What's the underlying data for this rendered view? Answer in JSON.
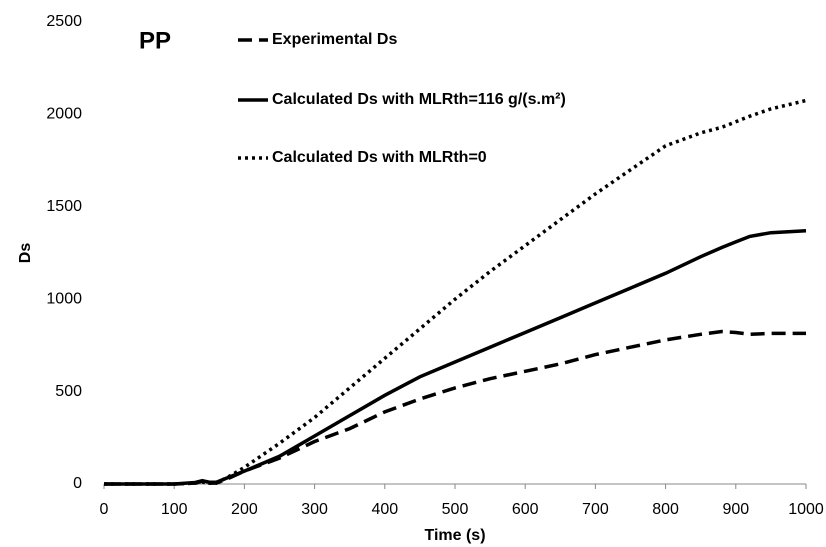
{
  "chart_data": {
    "type": "line",
    "title": "PP",
    "x_label": "Time (s)",
    "y_label": "Ds",
    "x": [
      0,
      50,
      100,
      130,
      140,
      150,
      160,
      180,
      200,
      250,
      300,
      350,
      400,
      450,
      500,
      550,
      600,
      650,
      700,
      750,
      800,
      850,
      880,
      900,
      920,
      950,
      1000
    ],
    "series": [
      {
        "name": "Experimental Ds",
        "color": "#000000",
        "style": "dashed",
        "values": [
          0,
          0,
          0,
          5,
          15,
          5,
          5,
          35,
          70,
          140,
          230,
          300,
          390,
          460,
          520,
          570,
          610,
          650,
          700,
          740,
          780,
          810,
          825,
          820,
          810,
          815,
          815
        ]
      },
      {
        "name": "Calculated Ds with MLRth=116 g/(s.m²)",
        "color": "#000000",
        "style": "solid",
        "values": [
          0,
          0,
          0,
          8,
          18,
          10,
          10,
          40,
          70,
          150,
          260,
          370,
          480,
          580,
          660,
          740,
          820,
          900,
          980,
          1060,
          1140,
          1230,
          1280,
          1310,
          1340,
          1360,
          1370
        ]
      },
      {
        "name": "Calculated Ds with MLRth=0",
        "color": "#000000",
        "style": "dotted",
        "values": [
          0,
          0,
          0,
          5,
          10,
          5,
          5,
          45,
          90,
          220,
          360,
          520,
          680,
          840,
          1000,
          1150,
          1290,
          1430,
          1570,
          1700,
          1830,
          1900,
          1930,
          1960,
          1990,
          2030,
          2075
        ]
      }
    ],
    "xlim": [
      0,
      1000
    ],
    "xticks": [
      0,
      100,
      200,
      300,
      400,
      500,
      600,
      700,
      800,
      900,
      1000
    ],
    "ylim": [
      0,
      2500
    ],
    "yticks": [
      0,
      500,
      1000,
      1500,
      2000,
      2500
    ],
    "grid": false
  }
}
